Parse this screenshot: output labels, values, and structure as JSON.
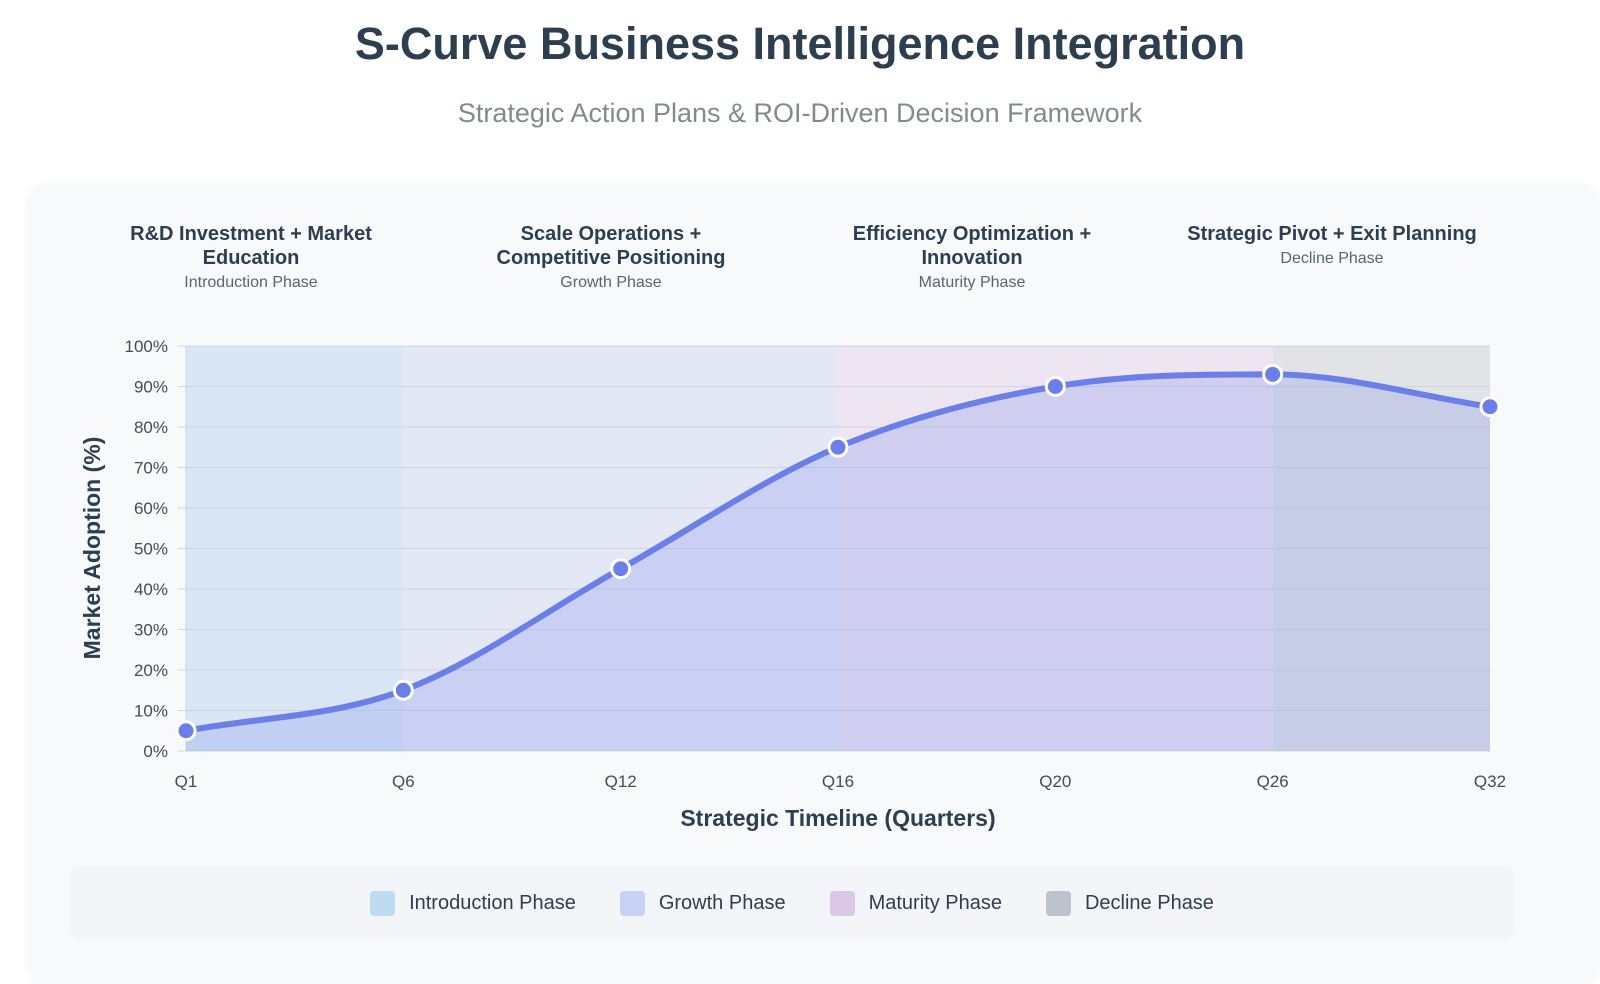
{
  "page": {
    "title": "S-Curve Business Intelligence Integration",
    "subtitle": "Strategic Action Plans & ROI-Driven Decision Framework"
  },
  "phases": [
    {
      "strategy": "R&D Investment + Market Education",
      "name": "Introduction Phase",
      "color": "#bfdbf1"
    },
    {
      "strategy": "Scale Operations + Competitive Positioning",
      "name": "Growth Phase",
      "color": "#c7d0f5"
    },
    {
      "strategy": "Efficiency Optimization + Innovation",
      "name": "Maturity Phase",
      "color": "#dcc8e6"
    },
    {
      "strategy": "Strategic Pivot + Exit Planning",
      "name": "Decline Phase",
      "color": "#bdc3cc"
    }
  ],
  "chart_data": {
    "type": "area",
    "title": "",
    "xlabel": "Strategic Timeline (Quarters)",
    "ylabel": "Market Adoption (%)",
    "x": [
      "Q1",
      "Q6",
      "Q12",
      "Q16",
      "Q20",
      "Q26",
      "Q32"
    ],
    "series": [
      {
        "values": [
          5,
          15,
          45,
          75,
          90,
          93,
          85
        ],
        "color": "#6a7fe8"
      }
    ],
    "ylim": [
      0,
      100
    ],
    "yticks": [
      "0%",
      "10%",
      "20%",
      "30%",
      "40%",
      "50%",
      "60%",
      "70%",
      "80%",
      "90%",
      "100%"
    ],
    "grid": true,
    "legend": "bottom",
    "phase_regions": [
      {
        "name": "Introduction Phase",
        "from": "Q1",
        "to": "Q6",
        "color": "#d9e6f5"
      },
      {
        "name": "Growth Phase",
        "from": "Q6",
        "to": "Q16",
        "color": "#e4e7f6"
      },
      {
        "name": "Maturity Phase",
        "from": "Q16",
        "to": "Q26",
        "color": "#ede5f2"
      },
      {
        "name": "Decline Phase",
        "from": "Q26",
        "to": "Q32",
        "color": "#e2e3e6"
      }
    ]
  }
}
